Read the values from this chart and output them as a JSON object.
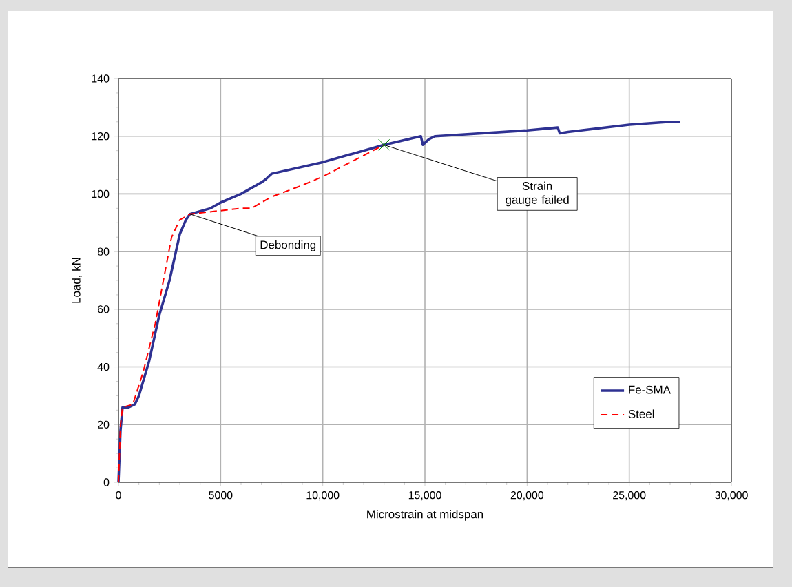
{
  "chart_data": {
    "type": "line",
    "xlabel": "Microstrain at midspan",
    "ylabel": "Load, kN",
    "xlim": [
      0,
      30000
    ],
    "ylim": [
      0,
      140
    ],
    "xticks": [
      0,
      5000,
      {
        "value": 10000,
        "label": "10,000"
      },
      {
        "value": 15000,
        "label": "15,000"
      },
      {
        "value": 20000,
        "label": "20,000"
      },
      {
        "value": 25000,
        "label": "25,000"
      },
      {
        "value": 30000,
        "label": "30,000"
      }
    ],
    "yticks": [
      0,
      20,
      40,
      60,
      80,
      100,
      120,
      140
    ],
    "grid": true,
    "legend": "bottom right",
    "series": [
      {
        "name": "Fe-SMA",
        "color": "#2e3192",
        "line_style": "solid",
        "x": [
          0,
          100,
          200,
          500,
          800,
          1000,
          1500,
          2000,
          2500,
          3000,
          3300,
          3500,
          4500,
          5000,
          6000,
          7000,
          7200,
          7500,
          10000,
          13000,
          14800,
          14900,
          15200,
          15500,
          20000,
          21500,
          21600,
          22000,
          25000,
          27000,
          27500
        ],
        "values": [
          0,
          18,
          26,
          26,
          27,
          30,
          42,
          58,
          70,
          86,
          91,
          93,
          95,
          97,
          100,
          104,
          105,
          107,
          111,
          117,
          120,
          117,
          119,
          120,
          122,
          123,
          121,
          121.5,
          124,
          125,
          125
        ]
      },
      {
        "name": "Steel",
        "color": "#ff0000",
        "line_style": "dashed",
        "x": [
          0,
          100,
          200,
          700,
          1200,
          1800,
          2200,
          2600,
          3000,
          3500,
          6000,
          6500,
          7500,
          9000,
          10000,
          13000
        ],
        "values": [
          0,
          20,
          26,
          27,
          38,
          55,
          70,
          85,
          91,
          93,
          95,
          95,
          99,
          103,
          106,
          117
        ]
      }
    ],
    "annotations": [
      {
        "text": "Debonding",
        "x": 3500,
        "y": 93
      },
      {
        "text": "Strain gauge failed",
        "x": 13000,
        "y": 117
      }
    ]
  }
}
